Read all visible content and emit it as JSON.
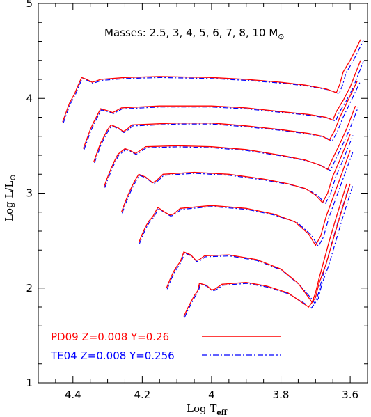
{
  "chart_data": {
    "type": "line",
    "title": "",
    "annotation": {
      "prefix": "Masses: 2.5, 3, 4, 5, 6, 7, 8, 10 M",
      "suffix": "⊙"
    },
    "xlabel": {
      "main": "Log T",
      "sub": "eff"
    },
    "ylabel": {
      "main": "Log L/L",
      "sub": "⊙"
    },
    "xlim": [
      4.5,
      3.55
    ],
    "ylim": [
      1,
      5
    ],
    "xticks": [
      {
        "value": 4.4,
        "label": "4.4"
      },
      {
        "value": 4.2,
        "label": "4.2"
      },
      {
        "value": 4.0,
        "label": "4"
      },
      {
        "value": 3.8,
        "label": "3.8"
      },
      {
        "value": 3.6,
        "label": "3.6"
      }
    ],
    "yticks": [
      {
        "value": 1,
        "label": "1"
      },
      {
        "value": 2,
        "label": "2"
      },
      {
        "value": 3,
        "label": "3"
      },
      {
        "value": 4,
        "label": "4"
      },
      {
        "value": 5,
        "label": "5"
      }
    ],
    "grid": false,
    "legend_position": "bottom-left",
    "series": [
      {
        "name": "PD09 Z=0.008 Y=0.26",
        "color": "#ff0000",
        "dash": "solid"
      },
      {
        "name": "TE04 Z=0.008 Y=0.256",
        "color": "#0000ff",
        "dash": "dashdot"
      }
    ],
    "tracks": [
      {
        "mass": 10,
        "points": [
          [
            4.43,
            3.75
          ],
          [
            4.42,
            3.85
          ],
          [
            4.41,
            3.95
          ],
          [
            4.395,
            4.05
          ],
          [
            4.385,
            4.14
          ],
          [
            4.375,
            4.22
          ],
          [
            4.36,
            4.2
          ],
          [
            4.345,
            4.17
          ],
          [
            4.335,
            4.18
          ],
          [
            4.32,
            4.2
          ],
          [
            4.25,
            4.22
          ],
          [
            4.15,
            4.23
          ],
          [
            4.0,
            4.22
          ],
          [
            3.9,
            4.2
          ],
          [
            3.8,
            4.17
          ],
          [
            3.73,
            4.14
          ],
          [
            3.67,
            4.1
          ],
          [
            3.64,
            4.06
          ],
          [
            3.63,
            4.15
          ],
          [
            3.62,
            4.28
          ],
          [
            3.6,
            4.4
          ],
          [
            3.57,
            4.62
          ]
        ]
      },
      {
        "mass": 8,
        "points": [
          [
            4.37,
            3.47
          ],
          [
            4.36,
            3.57
          ],
          [
            4.35,
            3.67
          ],
          [
            4.34,
            3.75
          ],
          [
            4.33,
            3.82
          ],
          [
            4.32,
            3.89
          ],
          [
            4.3,
            3.87
          ],
          [
            4.285,
            3.85
          ],
          [
            4.275,
            3.87
          ],
          [
            4.26,
            3.9
          ],
          [
            4.15,
            3.92
          ],
          [
            4.0,
            3.92
          ],
          [
            3.9,
            3.9
          ],
          [
            3.8,
            3.86
          ],
          [
            3.72,
            3.83
          ],
          [
            3.67,
            3.8
          ],
          [
            3.65,
            3.77
          ],
          [
            3.64,
            3.86
          ],
          [
            3.62,
            3.98
          ],
          [
            3.6,
            4.12
          ],
          [
            3.57,
            4.4
          ]
        ]
      },
      {
        "mass": 7,
        "points": [
          [
            4.34,
            3.33
          ],
          [
            4.33,
            3.43
          ],
          [
            4.32,
            3.53
          ],
          [
            4.31,
            3.6
          ],
          [
            4.3,
            3.67
          ],
          [
            4.29,
            3.72
          ],
          [
            4.27,
            3.69
          ],
          [
            4.255,
            3.65
          ],
          [
            4.245,
            3.67
          ],
          [
            4.23,
            3.72
          ],
          [
            4.1,
            3.74
          ],
          [
            4.0,
            3.74
          ],
          [
            3.9,
            3.71
          ],
          [
            3.8,
            3.67
          ],
          [
            3.72,
            3.63
          ],
          [
            3.68,
            3.6
          ],
          [
            3.66,
            3.56
          ],
          [
            3.645,
            3.66
          ],
          [
            3.63,
            3.8
          ],
          [
            3.61,
            3.95
          ],
          [
            3.58,
            4.18
          ]
        ]
      },
      {
        "mass": 6,
        "points": [
          [
            4.31,
            3.07
          ],
          [
            4.3,
            3.17
          ],
          [
            4.29,
            3.26
          ],
          [
            4.28,
            3.34
          ],
          [
            4.27,
            3.41
          ],
          [
            4.25,
            3.47
          ],
          [
            4.235,
            3.45
          ],
          [
            4.22,
            3.42
          ],
          [
            4.21,
            3.44
          ],
          [
            4.19,
            3.49
          ],
          [
            4.1,
            3.5
          ],
          [
            4.0,
            3.49
          ],
          [
            3.9,
            3.46
          ],
          [
            3.8,
            3.4
          ],
          [
            3.73,
            3.35
          ],
          [
            3.69,
            3.3
          ],
          [
            3.665,
            3.25
          ],
          [
            3.65,
            3.37
          ],
          [
            3.63,
            3.52
          ],
          [
            3.61,
            3.68
          ],
          [
            3.585,
            3.92
          ]
        ]
      },
      {
        "mass": 5,
        "points": [
          [
            4.26,
            2.8
          ],
          [
            4.25,
            2.9
          ],
          [
            4.24,
            2.99
          ],
          [
            4.23,
            3.07
          ],
          [
            4.22,
            3.14
          ],
          [
            4.21,
            3.2
          ],
          [
            4.19,
            3.17
          ],
          [
            4.17,
            3.11
          ],
          [
            4.16,
            3.13
          ],
          [
            4.14,
            3.2
          ],
          [
            4.05,
            3.22
          ],
          [
            3.95,
            3.2
          ],
          [
            3.85,
            3.15
          ],
          [
            3.78,
            3.1
          ],
          [
            3.73,
            3.05
          ],
          [
            3.7,
            2.98
          ],
          [
            3.68,
            2.9
          ],
          [
            3.665,
            3.0
          ],
          [
            3.65,
            3.18
          ],
          [
            3.63,
            3.35
          ],
          [
            3.6,
            3.62
          ]
        ]
      },
      {
        "mass": 4,
        "points": [
          [
            4.21,
            2.48
          ],
          [
            4.2,
            2.57
          ],
          [
            4.19,
            2.65
          ],
          [
            4.18,
            2.71
          ],
          [
            4.17,
            2.75
          ],
          [
            4.155,
            2.85
          ],
          [
            4.135,
            2.8
          ],
          [
            4.12,
            2.77
          ],
          [
            4.11,
            2.78
          ],
          [
            4.09,
            2.84
          ],
          [
            4.0,
            2.87
          ],
          [
            3.9,
            2.84
          ],
          [
            3.82,
            2.78
          ],
          [
            3.76,
            2.7
          ],
          [
            3.72,
            2.57
          ],
          [
            3.7,
            2.45
          ],
          [
            3.685,
            2.55
          ],
          [
            3.67,
            2.75
          ],
          [
            3.65,
            2.95
          ],
          [
            3.63,
            3.15
          ],
          [
            3.6,
            3.45
          ]
        ]
      },
      {
        "mass": 3,
        "points": [
          [
            4.13,
            2.0
          ],
          [
            4.12,
            2.09
          ],
          [
            4.11,
            2.17
          ],
          [
            4.1,
            2.23
          ],
          [
            4.09,
            2.28
          ],
          [
            4.08,
            2.38
          ],
          [
            4.06,
            2.35
          ],
          [
            4.045,
            2.29
          ],
          [
            4.035,
            2.3
          ],
          [
            4.02,
            2.34
          ],
          [
            3.95,
            2.35
          ],
          [
            3.87,
            2.3
          ],
          [
            3.8,
            2.2
          ],
          [
            3.75,
            2.05
          ],
          [
            3.72,
            1.9
          ],
          [
            3.71,
            1.85
          ],
          [
            3.7,
            1.95
          ],
          [
            3.69,
            2.1
          ],
          [
            3.675,
            2.3
          ],
          [
            3.66,
            2.5
          ],
          [
            3.64,
            2.75
          ],
          [
            3.61,
            3.1
          ]
        ]
      },
      {
        "mass": 2.5,
        "points": [
          [
            4.08,
            1.7
          ],
          [
            4.07,
            1.78
          ],
          [
            4.06,
            1.85
          ],
          [
            4.05,
            1.92
          ],
          [
            4.04,
            1.97
          ],
          [
            4.035,
            2.05
          ],
          [
            4.015,
            2.03
          ],
          [
            4.0,
            1.98
          ],
          [
            3.99,
            1.99
          ],
          [
            3.97,
            2.04
          ],
          [
            3.9,
            2.06
          ],
          [
            3.84,
            2.02
          ],
          [
            3.78,
            1.95
          ],
          [
            3.74,
            1.85
          ],
          [
            3.72,
            1.8
          ],
          [
            3.7,
            1.9
          ],
          [
            3.69,
            2.05
          ],
          [
            3.67,
            2.25
          ],
          [
            3.65,
            2.5
          ],
          [
            3.63,
            2.75
          ],
          [
            3.6,
            3.1
          ]
        ]
      }
    ]
  }
}
